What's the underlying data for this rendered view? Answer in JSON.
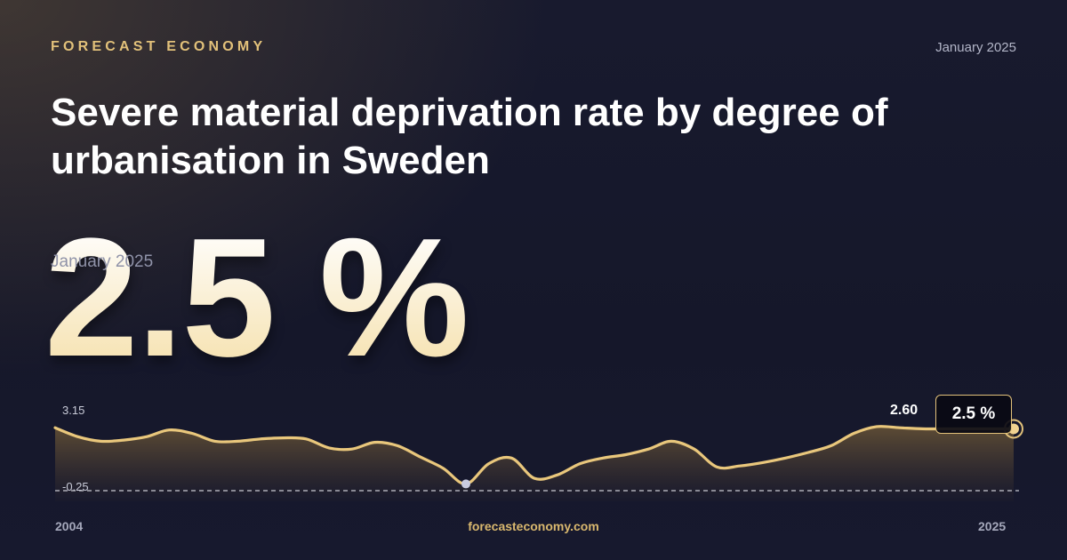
{
  "brand": "FORECAST ECONOMY",
  "date": "January 2025",
  "title": "Severe material deprivation rate by degree of urbanisation in Sweden",
  "headline": {
    "date": "January 2025",
    "value": "2.5 %"
  },
  "footer": {
    "site": "forecasteconomy.com"
  },
  "colors": {
    "accent": "#e2c17a",
    "line": "#e9c77c",
    "background": "#15172b"
  },
  "chart_data": {
    "type": "area",
    "x_start": "2004",
    "x_end": "2025",
    "ylim": [
      -0.25,
      3.15
    ],
    "y_tick_labels": [
      "3.15",
      "-0.25"
    ],
    "x_tick_labels": [
      "2004",
      "2025"
    ],
    "peak_label": "2.60",
    "last_value_label": "2.5 %",
    "grid": false,
    "x": [
      2004.0,
      2004.5,
      2005.0,
      2005.5,
      2006.0,
      2006.5,
      2007.0,
      2007.5,
      2008.0,
      2008.5,
      2009.0,
      2009.5,
      2010.0,
      2010.5,
      2011.0,
      2011.5,
      2012.0,
      2012.5,
      2013.0,
      2013.5,
      2014.0,
      2014.5,
      2015.0,
      2015.5,
      2016.0,
      2016.5,
      2017.0,
      2017.5,
      2018.0,
      2018.5,
      2019.0,
      2019.5,
      2020.0,
      2020.5,
      2021.0,
      2021.5,
      2022.0,
      2022.5,
      2023.0,
      2023.5,
      2024.0,
      2024.5,
      2025.0
    ],
    "values": [
      2.55,
      2.15,
      1.95,
      2.0,
      2.15,
      2.45,
      2.3,
      1.95,
      1.95,
      2.05,
      2.1,
      2.05,
      1.65,
      1.6,
      1.9,
      1.75,
      1.25,
      0.75,
      0.05,
      0.95,
      1.2,
      0.3,
      0.45,
      0.95,
      1.2,
      1.35,
      1.6,
      1.95,
      1.6,
      0.8,
      0.85,
      1.0,
      1.2,
      1.45,
      1.75,
      2.3,
      2.6,
      2.55,
      2.5,
      2.5,
      2.5,
      2.5,
      2.5
    ],
    "highlight_min_index": 18
  }
}
